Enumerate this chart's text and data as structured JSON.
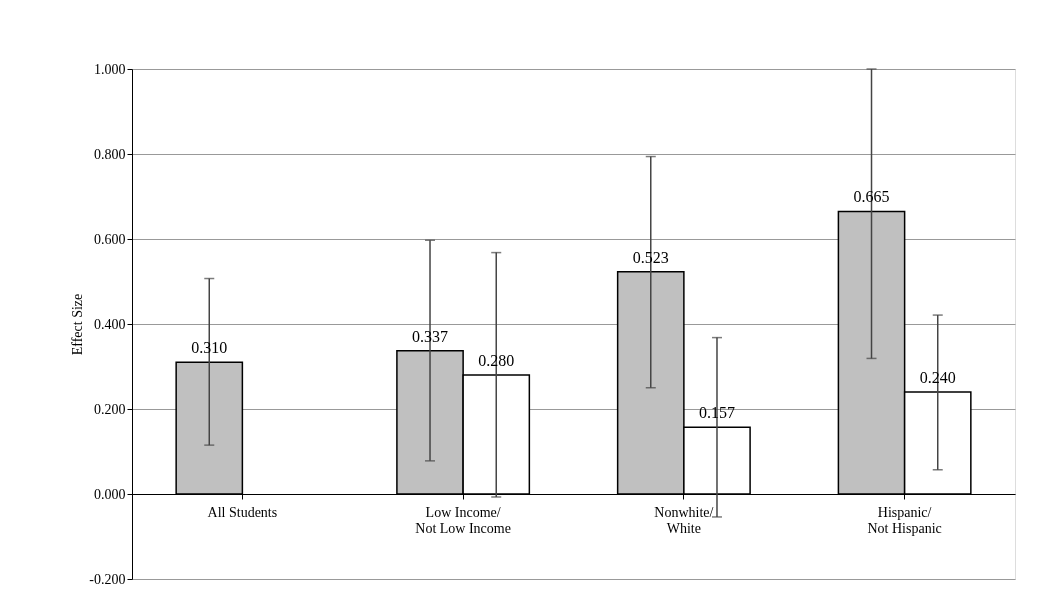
{
  "chart_data": {
    "type": "bar",
    "categories": [
      "All Students",
      "Low Income/\nNot Low Income",
      "Nonwhite/\nWhite",
      "Hispanic/\nNot Hispanic"
    ],
    "series": [
      {
        "color": "#c0c0c0",
        "values": [
          0.31,
          0.337,
          0.523,
          0.665
        ],
        "value_labels": [
          "0.310",
          "0.337",
          "0.523",
          "0.665"
        ],
        "errors": [
          [
            0.115,
            0.507
          ],
          [
            0.078,
            0.597
          ],
          [
            0.25,
            0.794
          ],
          [
            0.319,
            1.0
          ]
        ]
      },
      {
        "color": "#ffffff",
        "values": [
          null,
          0.28,
          0.157,
          0.24
        ],
        "value_labels": [
          null,
          "0.280",
          "0.157",
          "0.240"
        ],
        "errors": [
          null,
          [
            -0.007,
            0.568
          ],
          [
            -0.054,
            0.368
          ],
          [
            0.057,
            0.421
          ]
        ]
      }
    ],
    "ylabel": "Effect Size",
    "ylim": [
      -0.2,
      1.0
    ],
    "yticks": [
      {
        "value": -0.2,
        "label": "-0.200"
      },
      {
        "value": 0,
        "label": "0.000"
      },
      {
        "value": 0.2,
        "label": "0.200"
      },
      {
        "value": 0.4,
        "label": "0.400"
      },
      {
        "value": 0.6,
        "label": "0.600"
      },
      {
        "value": 0.8,
        "label": "0.800"
      },
      {
        "value": 1.0,
        "label": "1.000"
      }
    ],
    "grid": "y"
  }
}
